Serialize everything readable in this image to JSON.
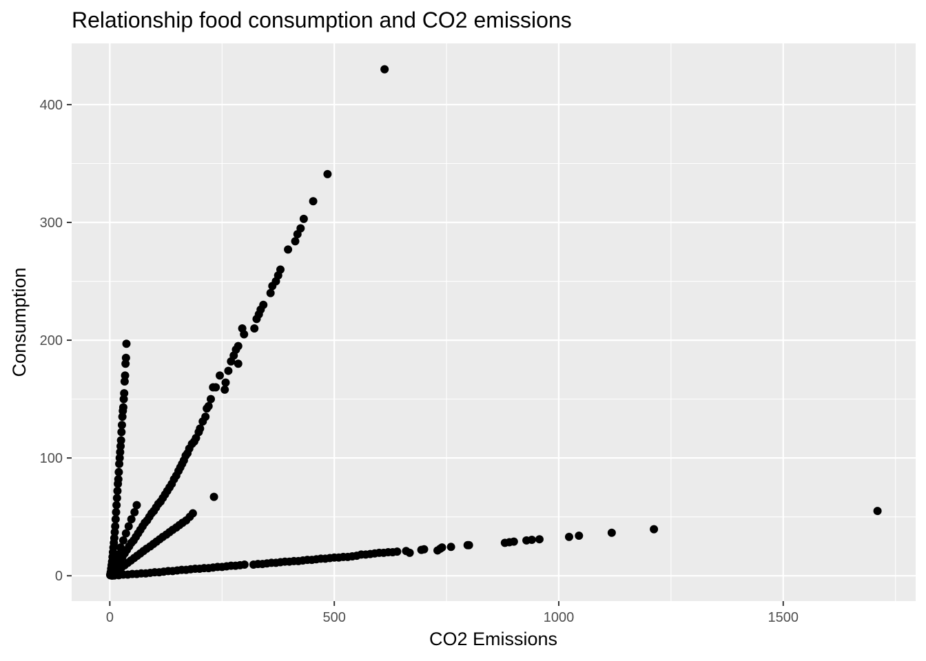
{
  "chart_data": {
    "type": "scatter",
    "title": "Relationship food consumption and CO2 emissions",
    "xlabel": "CO2 Emissions",
    "ylabel": "Consumption",
    "xlim": [
      -85,
      1795
    ],
    "ylim": [
      -21.5,
      452
    ],
    "x_major_ticks": [
      0,
      500,
      1000,
      1500
    ],
    "x_tick_labels": [
      "0",
      "500",
      "1000",
      "1500"
    ],
    "x_minor_ticks": [
      250,
      750,
      1250,
      1750
    ],
    "y_major_ticks": [
      0,
      100,
      200,
      300,
      400
    ],
    "y_tick_labels": [
      "0",
      "100",
      "200",
      "300",
      "400"
    ],
    "y_minor_ticks": [
      50,
      150,
      250,
      350
    ],
    "grid": true,
    "legend": "none",
    "colors": {
      "panel": "#ebebeb",
      "grid": "#ffffff",
      "point": "#000000"
    },
    "series": [
      {
        "x": [
          612,
          485,
          453,
          432,
          425,
          418,
          413,
          397,
          380,
          375,
          370,
          362,
          358,
          342,
          336,
          332,
          327,
          322,
          299,
          295,
          286,
          281,
          276,
          270,
          264,
          258,
          256,
          245,
          236,
          230,
          225,
          220,
          216,
          213,
          207,
          201,
          198,
          192,
          188,
          183,
          177,
          173,
          169,
          165,
          161,
          157,
          153,
          148,
          143,
          138,
          133,
          128,
          123,
          118,
          113,
          108,
          103,
          98,
          93,
          88,
          83,
          78,
          73,
          68,
          63,
          58,
          53,
          48,
          43,
          38,
          33,
          28,
          23,
          18,
          13,
          8,
          4,
          1,
          286,
          232
        ],
        "y": [
          430,
          341,
          318,
          303,
          295,
          290,
          284,
          277,
          260,
          255,
          250,
          246,
          240,
          230,
          226,
          222,
          218,
          210,
          205,
          210,
          195,
          192,
          187,
          182,
          174,
          164,
          158,
          170,
          160,
          160,
          150,
          144,
          142,
          135,
          131,
          125,
          122,
          117,
          114,
          112,
          108,
          104,
          102,
          98,
          95,
          92,
          89,
          85,
          82,
          78,
          75,
          72,
          69,
          66,
          63,
          61,
          58,
          55,
          53,
          50,
          47,
          45,
          42,
          39,
          36,
          33,
          30,
          28,
          25,
          22,
          19,
          16,
          13,
          10,
          7,
          5,
          2,
          0.5,
          180,
          67
        ]
      },
      {
        "x": [
          37,
          36,
          35,
          34,
          33,
          32,
          31,
          30,
          29,
          28,
          27,
          26,
          25,
          24,
          23,
          22,
          21,
          20,
          19,
          18,
          17,
          16,
          15,
          14,
          13,
          12,
          11,
          10,
          9,
          8,
          7,
          6,
          5,
          4,
          3,
          2,
          1
        ],
        "y": [
          197,
          185,
          180,
          170,
          165,
          155,
          150,
          143,
          140,
          135,
          128,
          122,
          115,
          110,
          105,
          100,
          95,
          88,
          82,
          78,
          72,
          66,
          60,
          54,
          48,
          42,
          37,
          32,
          28,
          24,
          20,
          16,
          12,
          9,
          6,
          3,
          1
        ]
      },
      {
        "x": [
          185,
          178,
          170,
          162,
          155,
          148,
          140,
          133,
          126,
          118,
          111,
          104,
          97,
          90,
          82,
          75,
          68,
          61,
          54,
          47,
          40,
          33,
          26,
          19,
          12,
          6,
          2,
          60,
          55,
          48,
          42,
          36,
          30,
          24,
          18,
          12,
          6
        ],
        "y": [
          53,
          50,
          47,
          45,
          43,
          41,
          39,
          37,
          35,
          33,
          31,
          29,
          27,
          25,
          23,
          21,
          19,
          17,
          15,
          13,
          11,
          9,
          7,
          5,
          3,
          1.5,
          0.5,
          60,
          54,
          48,
          42,
          36,
          30,
          24,
          18,
          12,
          6
        ]
      },
      {
        "x": [
          1710,
          1212,
          1118,
          1045,
          1023,
          957,
          940,
          928,
          900,
          890,
          880,
          800,
          797,
          760,
          740,
          736,
          730,
          700,
          694,
          668,
          660,
          640,
          630,
          620,
          610,
          600,
          590,
          580,
          570,
          560,
          550,
          540,
          530,
          520,
          510,
          500,
          490,
          480,
          470,
          460,
          450,
          440,
          430,
          420,
          410,
          400,
          390,
          380,
          370,
          360,
          350,
          340,
          330,
          320,
          300,
          290,
          280,
          270,
          260,
          250,
          240,
          230,
          220,
          210,
          200,
          190,
          180,
          170,
          160,
          150,
          140,
          130,
          120,
          110,
          100,
          90,
          80,
          70,
          60,
          50,
          40,
          30,
          20,
          10,
          5
        ],
        "y": [
          55,
          39.5,
          36.5,
          34,
          33,
          31,
          30.5,
          30,
          29,
          28.5,
          28,
          26,
          26,
          24.5,
          24,
          23,
          21.5,
          22.5,
          22,
          19.5,
          21,
          20.5,
          20,
          20,
          19.5,
          19.5,
          19,
          18.5,
          18,
          18,
          17,
          16.5,
          16,
          16,
          15.5,
          15.5,
          15,
          14.5,
          14.5,
          14,
          13.5,
          13.5,
          13,
          12.5,
          12.5,
          12,
          12,
          11.5,
          11,
          11,
          10.5,
          10,
          10,
          9.5,
          9.5,
          9,
          8.5,
          8.5,
          8,
          7.5,
          7.5,
          7,
          6.5,
          6.5,
          6,
          6,
          5.5,
          5,
          5,
          4.5,
          4,
          4,
          3.5,
          3,
          3,
          2.5,
          2,
          2,
          1.5,
          1.5,
          1,
          1,
          0.5,
          0.3,
          0.1
        ]
      }
    ]
  }
}
